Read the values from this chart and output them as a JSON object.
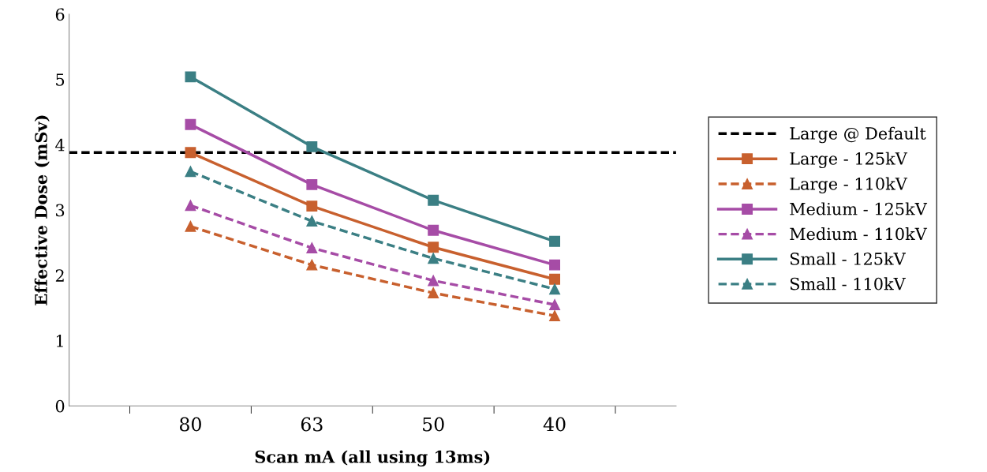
{
  "chart_data": {
    "type": "line",
    "xlabel": "Scan mA (all using 13ms)",
    "ylabel": "Effective Dose (mSv)",
    "categories": [
      "80",
      "63",
      "50",
      "40"
    ],
    "ylim": [
      0,
      6
    ],
    "yticks": [
      0,
      1,
      2,
      3,
      4,
      5,
      6
    ],
    "grid": false,
    "legend": "right",
    "ref_lines": [
      {
        "axis": "y",
        "value": 3.88,
        "label": "Large @ Default",
        "color": "#000000",
        "line_style": "dashed"
      }
    ],
    "series": [
      {
        "name": "Large - 125kV",
        "color": "#c8602e",
        "marker": "square",
        "line_style": "solid",
        "values": [
          3.88,
          3.06,
          2.43,
          1.94
        ]
      },
      {
        "name": "Large - 110kV",
        "color": "#c8602e",
        "marker": "triangle",
        "line_style": "dashed",
        "values": [
          2.75,
          2.16,
          1.73,
          1.38
        ]
      },
      {
        "name": "Medium - 125kV",
        "color": "#a64ca6",
        "marker": "square",
        "line_style": "solid",
        "values": [
          4.31,
          3.39,
          2.69,
          2.16
        ]
      },
      {
        "name": "Medium - 110kV",
        "color": "#a64ca6",
        "marker": "triangle",
        "line_style": "dashed",
        "values": [
          3.07,
          2.42,
          1.92,
          1.55
        ]
      },
      {
        "name": "Small - 125kV",
        "color": "#3b7f84",
        "marker": "square",
        "line_style": "solid",
        "values": [
          5.04,
          3.97,
          3.15,
          2.52
        ]
      },
      {
        "name": "Small - 110kV",
        "color": "#3b7f84",
        "marker": "triangle",
        "line_style": "dashed",
        "values": [
          3.59,
          2.83,
          2.26,
          1.79
        ]
      }
    ]
  }
}
